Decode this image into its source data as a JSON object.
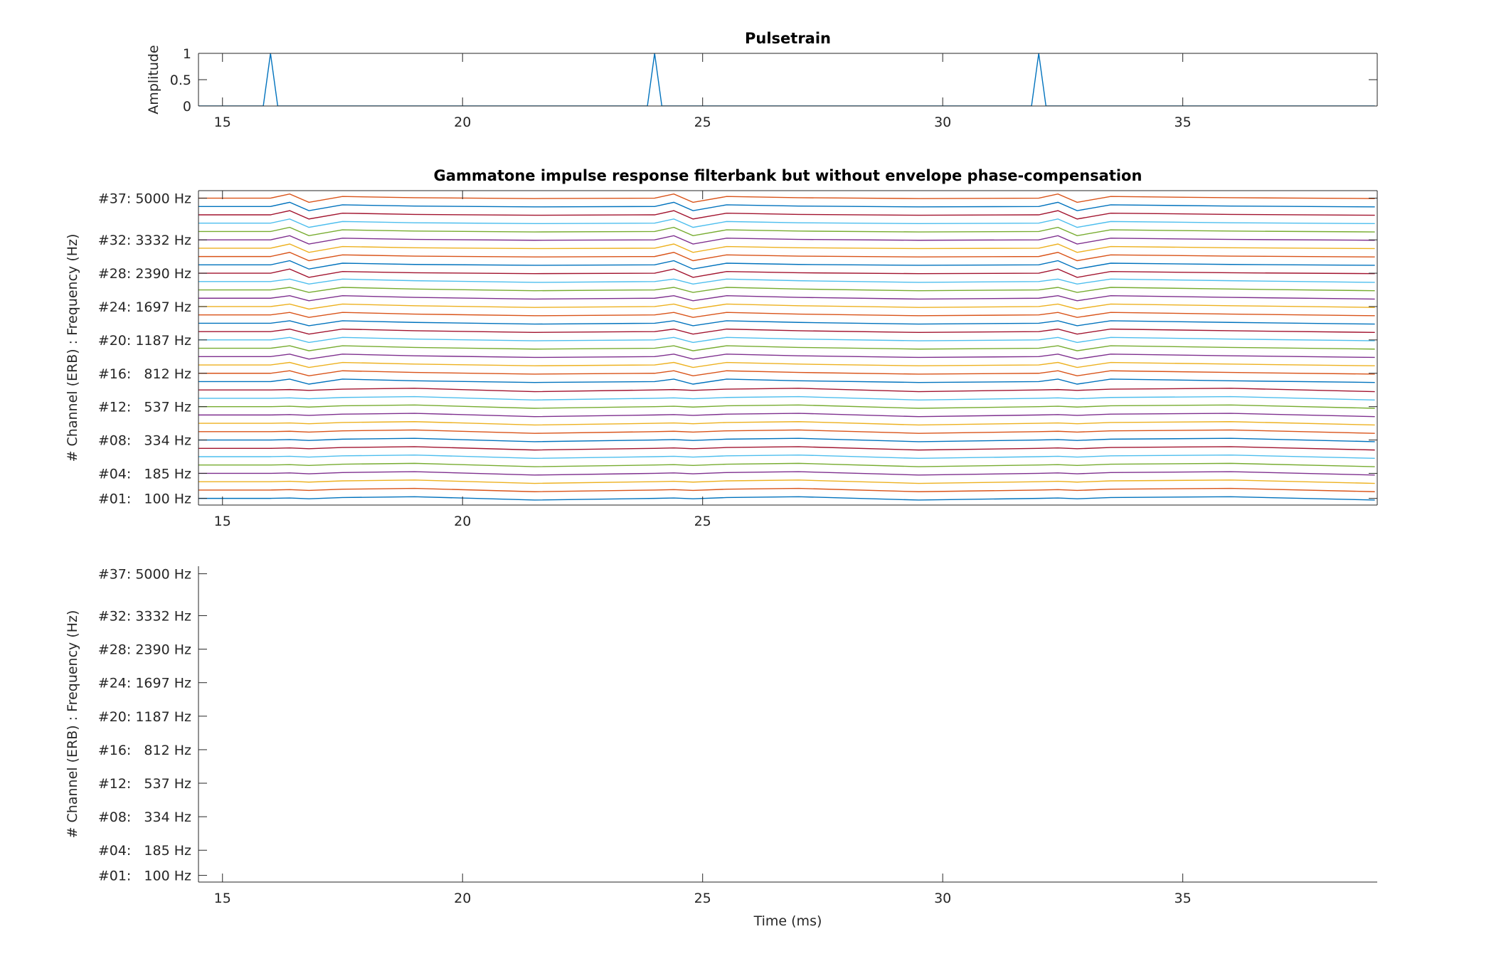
{
  "chart_data": [
    {
      "type": "line",
      "title": "Pulsetrain",
      "y_label": "Amplitude",
      "x": [
        14.5,
        15.85,
        16,
        16.15,
        23.85,
        24,
        24.15,
        31.85,
        32,
        32.15,
        39
      ],
      "values": [
        0,
        0,
        1,
        0,
        0,
        1,
        0,
        0,
        1,
        0,
        0
      ],
      "color": "#0072bd",
      "xlim": [
        14.5,
        39.05
      ],
      "ylim": [
        0,
        1
      ],
      "xticks": [
        15,
        20,
        25,
        30,
        35
      ],
      "yticks": [
        0,
        0.5,
        1
      ],
      "box": true
    },
    {
      "type": "line",
      "title": "Gammatone impulse response filterbank but without envelope phase-compensation",
      "y_label": "# Channel (ERB) : Frequency (Hz)",
      "x": [
        14.5,
        16,
        16.4,
        16.8,
        17.5,
        19,
        21.5,
        24,
        24.4,
        24.8,
        25.5,
        27,
        29.5,
        32,
        32.4,
        32.8,
        33.5,
        36,
        39
      ],
      "series": [
        {
          "color": "#0072bd",
          "values": [
            1,
            1,
            1.05,
            0.95,
            1.1,
            1.2,
            0.8,
            1,
            1.05,
            0.95,
            1.1,
            1.2,
            0.8,
            1,
            1.05,
            0.95,
            1.1,
            1.2,
            0.8
          ]
        },
        {
          "color": "#d95319",
          "values": [
            2,
            2,
            2.05,
            1.95,
            2.1,
            2.2,
            1.8,
            2,
            2.05,
            1.95,
            2.1,
            2.2,
            1.8,
            2,
            2.05,
            1.95,
            2.1,
            2.2,
            1.8
          ]
        },
        {
          "color": "#edb120",
          "values": [
            3,
            3,
            3.05,
            2.95,
            3.1,
            3.2,
            2.8,
            3,
            3.05,
            2.95,
            3.1,
            3.2,
            2.8,
            3,
            3.05,
            2.95,
            3.1,
            3.2,
            2.8
          ]
        },
        {
          "color": "#7e2f8e",
          "values": [
            4,
            4,
            4.05,
            3.95,
            4.1,
            4.2,
            3.8,
            4,
            4.05,
            3.95,
            4.1,
            4.2,
            3.8,
            4,
            4.05,
            3.95,
            4.1,
            4.2,
            3.8
          ]
        },
        {
          "color": "#77ac30",
          "values": [
            5,
            5,
            5.05,
            4.95,
            5.1,
            5.2,
            4.8,
            5,
            5.05,
            4.95,
            5.1,
            5.2,
            4.8,
            5,
            5.05,
            4.95,
            5.1,
            5.2,
            4.8
          ]
        },
        {
          "color": "#4dbeee",
          "values": [
            6,
            6,
            6.05,
            5.95,
            6.1,
            6.2,
            5.8,
            6,
            6.05,
            5.95,
            6.1,
            6.2,
            5.8,
            6,
            6.05,
            5.95,
            6.1,
            6.2,
            5.8
          ]
        },
        {
          "color": "#a2142f",
          "values": [
            7,
            7,
            7.05,
            6.95,
            7.1,
            7.2,
            6.8,
            7,
            7.05,
            6.95,
            7.1,
            7.2,
            6.8,
            7,
            7.05,
            6.95,
            7.1,
            7.2,
            6.8
          ]
        },
        {
          "color": "#0072bd",
          "values": [
            8,
            8,
            8.05,
            7.95,
            8.1,
            8.2,
            7.8,
            8,
            8.05,
            7.95,
            8.1,
            8.2,
            7.8,
            8,
            8.05,
            7.95,
            8.1,
            8.2,
            7.8
          ]
        },
        {
          "color": "#d95319",
          "values": [
            9,
            9,
            9.05,
            8.95,
            9.1,
            9.2,
            8.8,
            9,
            9.05,
            8.95,
            9.1,
            9.2,
            8.8,
            9,
            9.05,
            8.95,
            9.1,
            9.2,
            8.8
          ]
        },
        {
          "color": "#edb120",
          "values": [
            10,
            10,
            10.05,
            9.95,
            10.1,
            10.2,
            9.8,
            10,
            10.05,
            9.95,
            10.1,
            10.2,
            9.8,
            10,
            10.05,
            9.95,
            10.1,
            10.2,
            9.8
          ]
        },
        {
          "color": "#7e2f8e",
          "values": [
            11,
            11,
            11.05,
            10.95,
            11.1,
            11.2,
            10.8,
            11,
            11.05,
            10.95,
            11.1,
            11.2,
            10.8,
            11,
            11.05,
            10.95,
            11.1,
            11.2,
            10.8
          ]
        },
        {
          "color": "#77ac30",
          "values": [
            12,
            12,
            12.05,
            11.95,
            12.1,
            12.2,
            11.8,
            12,
            12.05,
            11.95,
            12.1,
            12.2,
            11.8,
            12,
            12.05,
            11.95,
            12.1,
            12.2,
            11.8
          ]
        },
        {
          "color": "#4dbeee",
          "values": [
            13,
            13,
            13.05,
            12.95,
            13.1,
            13.2,
            12.8,
            13,
            13.05,
            12.95,
            13.1,
            13.2,
            12.8,
            13,
            13.05,
            12.95,
            13.1,
            13.2,
            12.8
          ]
        },
        {
          "color": "#a2142f",
          "values": [
            14,
            14,
            14.05,
            13.95,
            14.1,
            14.2,
            13.8,
            14,
            14.05,
            13.95,
            14.1,
            14.2,
            13.8,
            14,
            14.05,
            13.95,
            14.1,
            14.2,
            13.8
          ]
        },
        {
          "color": "#0072bd",
          "values": [
            15,
            15,
            15.3,
            14.7,
            15.3,
            15.1,
            14.9,
            15,
            15.3,
            14.7,
            15.3,
            15.1,
            14.9,
            15,
            15.3,
            14.7,
            15.3,
            15.1,
            14.9
          ]
        },
        {
          "color": "#d95319",
          "values": [
            16,
            16,
            16.3,
            15.7,
            16.3,
            16.1,
            15.9,
            16,
            16.3,
            15.7,
            16.3,
            16.1,
            15.9,
            16,
            16.3,
            15.7,
            16.3,
            16.1,
            15.9
          ]
        },
        {
          "color": "#edb120",
          "values": [
            17,
            17,
            17.3,
            16.7,
            17.3,
            17.1,
            16.9,
            17,
            17.3,
            16.7,
            17.3,
            17.1,
            16.9,
            17,
            17.3,
            16.7,
            17.3,
            17.1,
            16.9
          ]
        },
        {
          "color": "#7e2f8e",
          "values": [
            18,
            18,
            18.3,
            17.7,
            18.3,
            18.1,
            17.9,
            18,
            18.3,
            17.7,
            18.3,
            18.1,
            17.9,
            18,
            18.3,
            17.7,
            18.3,
            18.1,
            17.9
          ]
        },
        {
          "color": "#77ac30",
          "values": [
            19,
            19,
            19.3,
            18.7,
            19.3,
            19.1,
            18.9,
            19,
            19.3,
            18.7,
            19.3,
            19.1,
            18.9,
            19,
            19.3,
            18.7,
            19.3,
            19.1,
            18.9
          ]
        },
        {
          "color": "#4dbeee",
          "values": [
            20,
            20,
            20.3,
            19.7,
            20.3,
            20.1,
            19.9,
            20,
            20.3,
            19.7,
            20.3,
            20.1,
            19.9,
            20,
            20.3,
            19.7,
            20.3,
            20.1,
            19.9
          ]
        },
        {
          "color": "#a2142f",
          "values": [
            21,
            21,
            21.3,
            20.7,
            21.3,
            21.1,
            20.9,
            21,
            21.3,
            20.7,
            21.3,
            21.1,
            20.9,
            21,
            21.3,
            20.7,
            21.3,
            21.1,
            20.9
          ]
        },
        {
          "color": "#0072bd",
          "values": [
            22,
            22,
            22.3,
            21.7,
            22.3,
            22.1,
            21.9,
            22,
            22.3,
            21.7,
            22.3,
            22.1,
            21.9,
            22,
            22.3,
            21.7,
            22.3,
            22.1,
            21.9
          ]
        },
        {
          "color": "#d95319",
          "values": [
            23,
            23,
            23.3,
            22.7,
            23.3,
            23.1,
            22.9,
            23,
            23.3,
            22.7,
            23.3,
            23.1,
            22.9,
            23,
            23.3,
            22.7,
            23.3,
            23.1,
            22.9
          ]
        },
        {
          "color": "#edb120",
          "values": [
            24,
            24,
            24.3,
            23.7,
            24.3,
            24.1,
            23.9,
            24,
            24.3,
            23.7,
            24.3,
            24.1,
            23.9,
            24,
            24.3,
            23.7,
            24.3,
            24.1,
            23.9
          ]
        },
        {
          "color": "#7e2f8e",
          "values": [
            25,
            25,
            25.3,
            24.7,
            25.3,
            25.1,
            24.9,
            25,
            25.3,
            24.7,
            25.3,
            25.1,
            24.9,
            25,
            25.3,
            24.7,
            25.3,
            25.1,
            24.9
          ]
        },
        {
          "color": "#77ac30",
          "values": [
            26,
            26,
            26.3,
            25.7,
            26.3,
            26.1,
            25.9,
            26,
            26.3,
            25.7,
            26.3,
            26.1,
            25.9,
            26,
            26.3,
            25.7,
            26.3,
            26.1,
            25.9
          ]
        },
        {
          "color": "#4dbeee",
          "values": [
            27,
            27,
            27.3,
            26.7,
            27.3,
            27.1,
            26.9,
            27,
            27.3,
            26.7,
            27.3,
            27.1,
            26.9,
            27,
            27.3,
            26.7,
            27.3,
            27.1,
            26.9
          ]
        },
        {
          "color": "#a2142f",
          "values": [
            28,
            28,
            28.5,
            27.5,
            28.2,
            28.05,
            27.95,
            28,
            28.5,
            27.5,
            28.2,
            28.05,
            27.95,
            28,
            28.5,
            27.5,
            28.2,
            28.05,
            27.95
          ]
        },
        {
          "color": "#0072bd",
          "values": [
            29,
            29,
            29.5,
            28.5,
            29.2,
            29.05,
            28.95,
            29,
            29.5,
            28.5,
            29.2,
            29.05,
            28.95,
            29,
            29.5,
            28.5,
            29.2,
            29.05,
            28.95
          ]
        },
        {
          "color": "#d95319",
          "values": [
            30,
            30,
            30.5,
            29.5,
            30.2,
            30.05,
            29.95,
            30,
            30.5,
            29.5,
            30.2,
            30.05,
            29.95,
            30,
            30.5,
            29.5,
            30.2,
            30.05,
            29.95
          ]
        },
        {
          "color": "#edb120",
          "values": [
            31,
            31,
            31.5,
            30.5,
            31.2,
            31.05,
            30.95,
            31,
            31.5,
            30.5,
            31.2,
            31.05,
            30.95,
            31,
            31.5,
            30.5,
            31.2,
            31.05,
            30.95
          ]
        },
        {
          "color": "#7e2f8e",
          "values": [
            32,
            32,
            32.5,
            31.5,
            32.2,
            32.05,
            31.95,
            32,
            32.5,
            31.5,
            32.2,
            32.05,
            31.95,
            32,
            32.5,
            31.5,
            32.2,
            32.05,
            31.95
          ]
        },
        {
          "color": "#77ac30",
          "values": [
            33,
            33,
            33.5,
            32.5,
            33.2,
            33.05,
            32.95,
            33,
            33.5,
            32.5,
            33.2,
            33.05,
            32.95,
            33,
            33.5,
            32.5,
            33.2,
            33.05,
            32.95
          ]
        },
        {
          "color": "#4dbeee",
          "values": [
            34,
            34,
            34.5,
            33.5,
            34.2,
            34.05,
            33.95,
            34,
            34.5,
            33.5,
            34.2,
            34.05,
            33.95,
            34,
            34.5,
            33.5,
            34.2,
            34.05,
            33.95
          ]
        },
        {
          "color": "#a2142f",
          "values": [
            35,
            35,
            35.5,
            34.5,
            35.2,
            35.05,
            34.95,
            35,
            35.5,
            34.5,
            35.2,
            35.05,
            34.95,
            35,
            35.5,
            34.5,
            35.2,
            35.05,
            34.95
          ]
        },
        {
          "color": "#0072bd",
          "values": [
            36,
            36,
            36.5,
            35.5,
            36.2,
            36.05,
            35.95,
            36,
            36.5,
            35.5,
            36.2,
            36.05,
            35.95,
            36,
            36.5,
            35.5,
            36.2,
            36.05,
            35.95
          ]
        },
        {
          "color": "#d95319",
          "values": [
            37,
            37,
            37.5,
            36.5,
            37.2,
            37.05,
            36.95,
            37,
            37.5,
            36.5,
            37.2,
            37.05,
            36.95,
            37,
            37.5,
            36.5,
            37.2,
            37.05,
            36.95
          ]
        }
      ],
      "xlim": [
        14.5,
        39.05
      ],
      "ylim": [
        0.2,
        37.9
      ],
      "xticks": [
        15,
        20,
        25
      ],
      "yticks": [
        {
          "value": 1,
          "label": "#01:   100 Hz"
        },
        {
          "value": 4,
          "label": "#04:   185 Hz"
        },
        {
          "value": 8,
          "label": "#08:   334 Hz"
        },
        {
          "value": 12,
          "label": "#12:   537 Hz"
        },
        {
          "value": 16,
          "label": "#16:   812 Hz"
        },
        {
          "value": 20,
          "label": "#20: 1187 Hz"
        },
        {
          "value": 24,
          "label": "#24: 1697 Hz"
        },
        {
          "value": 28,
          "label": "#28: 2390 Hz"
        },
        {
          "value": 32,
          "label": "#32: 3332 Hz"
        },
        {
          "value": 37,
          "label": "#37: 5000 Hz"
        }
      ],
      "box": true
    },
    {
      "type": "line",
      "y_label": "# Channel (ERB) : Frequency (Hz)",
      "x_label": "Time (ms)",
      "series": [],
      "xlim": [
        14.5,
        39.05
      ],
      "ylim": [
        0.2,
        37.9
      ],
      "xticks": [
        15,
        20,
        25,
        30,
        35
      ],
      "yticks": [
        {
          "value": 1,
          "label": "#01:   100 Hz"
        },
        {
          "value": 4,
          "label": "#04:   185 Hz"
        },
        {
          "value": 8,
          "label": "#08:   334 Hz"
        },
        {
          "value": 12,
          "label": "#12:   537 Hz"
        },
        {
          "value": 16,
          "label": "#16:   812 Hz"
        },
        {
          "value": 20,
          "label": "#20: 1187 Hz"
        },
        {
          "value": 24,
          "label": "#24: 1697 Hz"
        },
        {
          "value": 28,
          "label": "#28: 2390 Hz"
        },
        {
          "value": 32,
          "label": "#32: 3332 Hz"
        },
        {
          "value": 37,
          "label": "#37: 5000 Hz"
        }
      ],
      "box": false
    }
  ]
}
